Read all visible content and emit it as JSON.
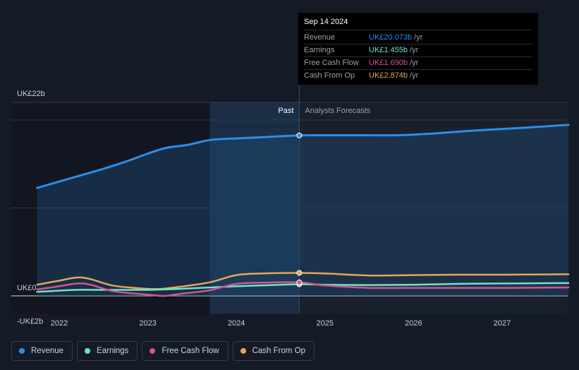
{
  "chart_data": {
    "type": "line",
    "y_ticks": [
      {
        "label": "UK£22b",
        "value": 22
      },
      {
        "label": "UK£0",
        "value": 0
      },
      {
        "label": "-UK£2b",
        "value": -2
      }
    ],
    "ylim": [
      -2,
      22
    ],
    "x_ticks": [
      "2022",
      "2023",
      "2024",
      "2025",
      "2026",
      "2027"
    ],
    "xlim": [
      2021.75,
      2027.75
    ],
    "past_label": "Past",
    "forecast_label": "Analysts Forecasts",
    "past_start": 2023.7,
    "divider_x": 2024.71,
    "series": [
      {
        "name": "Revenue",
        "color": "#2b8ee6",
        "points": [
          [
            2021.75,
            13.5
          ],
          [
            2022.0,
            14.3
          ],
          [
            2022.25,
            15.1
          ],
          [
            2022.5,
            15.9
          ],
          [
            2022.75,
            16.8
          ],
          [
            2023.0,
            17.8
          ],
          [
            2023.2,
            18.5
          ],
          [
            2023.45,
            18.9
          ],
          [
            2023.7,
            19.5
          ],
          [
            2024.0,
            19.7
          ],
          [
            2024.3,
            19.85
          ],
          [
            2024.71,
            20.073
          ],
          [
            2025.0,
            20.1
          ],
          [
            2025.4,
            20.1
          ],
          [
            2025.8,
            20.1
          ],
          [
            2026.2,
            20.3
          ],
          [
            2026.7,
            20.7
          ],
          [
            2027.2,
            21.0
          ],
          [
            2027.75,
            21.4
          ]
        ]
      },
      {
        "name": "Earnings",
        "color": "#6fe3c9",
        "points": [
          [
            2021.75,
            0.5
          ],
          [
            2022.0,
            0.65
          ],
          [
            2022.2,
            0.75
          ],
          [
            2022.5,
            0.75
          ],
          [
            2023.0,
            0.75
          ],
          [
            2023.3,
            0.85
          ],
          [
            2023.7,
            1.05
          ],
          [
            2024.0,
            1.2
          ],
          [
            2024.4,
            1.35
          ],
          [
            2024.71,
            1.455
          ],
          [
            2025.0,
            1.4
          ],
          [
            2025.5,
            1.35
          ],
          [
            2026.0,
            1.4
          ],
          [
            2026.5,
            1.5
          ],
          [
            2027.0,
            1.55
          ],
          [
            2027.75,
            1.6
          ]
        ]
      },
      {
        "name": "Free Cash Flow",
        "color": "#d3548f",
        "points": [
          [
            2021.75,
            0.8
          ],
          [
            2022.0,
            1.2
          ],
          [
            2022.2,
            1.55
          ],
          [
            2022.35,
            1.4
          ],
          [
            2022.6,
            0.6
          ],
          [
            2022.85,
            0.3
          ],
          [
            2023.05,
            0.1
          ],
          [
            2023.2,
            0.0
          ],
          [
            2023.4,
            0.3
          ],
          [
            2023.7,
            0.7
          ],
          [
            2024.0,
            1.5
          ],
          [
            2024.3,
            1.65
          ],
          [
            2024.71,
            1.69
          ],
          [
            2025.0,
            1.3
          ],
          [
            2025.5,
            1.0
          ],
          [
            2026.0,
            1.0
          ],
          [
            2026.5,
            1.0
          ],
          [
            2027.0,
            1.0
          ],
          [
            2027.75,
            1.05
          ]
        ]
      },
      {
        "name": "Cash From Op",
        "color": "#e5a55a",
        "points": [
          [
            2021.75,
            1.4
          ],
          [
            2022.0,
            1.9
          ],
          [
            2022.2,
            2.3
          ],
          [
            2022.35,
            2.1
          ],
          [
            2022.6,
            1.3
          ],
          [
            2022.85,
            1.0
          ],
          [
            2023.1,
            0.85
          ],
          [
            2023.3,
            1.05
          ],
          [
            2023.7,
            1.7
          ],
          [
            2024.0,
            2.6
          ],
          [
            2024.3,
            2.8
          ],
          [
            2024.71,
            2.874
          ],
          [
            2025.0,
            2.8
          ],
          [
            2025.5,
            2.55
          ],
          [
            2026.0,
            2.6
          ],
          [
            2026.5,
            2.65
          ],
          [
            2027.0,
            2.65
          ],
          [
            2027.75,
            2.7
          ]
        ]
      }
    ],
    "tooltip": {
      "date": "Sep 14 2024",
      "rows": [
        {
          "label": "Revenue",
          "value": "UK£20.073b",
          "unit": "/yr",
          "color": "#2b8ee6"
        },
        {
          "label": "Earnings",
          "value": "UK£1.455b",
          "unit": "/yr",
          "color": "#6fe3c9"
        },
        {
          "label": "Free Cash Flow",
          "value": "UK£1.690b",
          "unit": "/yr",
          "color": "#d3548f"
        },
        {
          "label": "Cash From Op",
          "value": "UK£2.874b",
          "unit": "/yr",
          "color": "#e5a55a"
        }
      ]
    }
  },
  "legend": [
    {
      "label": "Revenue",
      "color": "#2b8ee6"
    },
    {
      "label": "Earnings",
      "color": "#6fe3c9"
    },
    {
      "label": "Free Cash Flow",
      "color": "#d3548f"
    },
    {
      "label": "Cash From Op",
      "color": "#e5a55a"
    }
  ]
}
